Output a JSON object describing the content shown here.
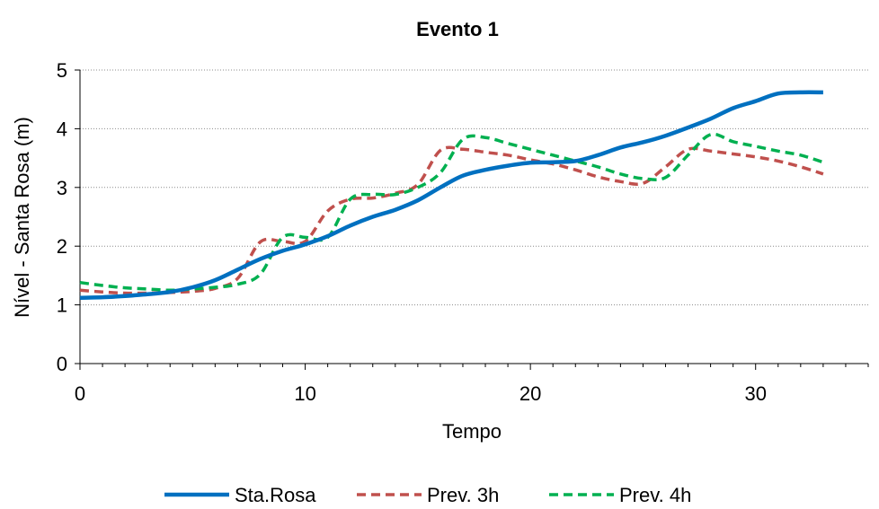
{
  "chart_data": {
    "type": "line",
    "title": "Evento 1",
    "xlabel": "Tempo",
    "ylabel": "Nível - Santa Rosa (m)",
    "xlim": [
      0,
      35
    ],
    "ylim": [
      0,
      5
    ],
    "xticks": [
      0,
      10,
      20,
      30
    ],
    "yticks": [
      0,
      1,
      2,
      3,
      4,
      5
    ],
    "grid": "horizontal-dotted",
    "legend_position": "bottom",
    "series": [
      {
        "name": "Sta.Rosa",
        "color": "#0070c0",
        "dash": "solid",
        "x": [
          0,
          1,
          2,
          3,
          4,
          5,
          6,
          7,
          8,
          9,
          10,
          11,
          12,
          13,
          14,
          15,
          16,
          17,
          18,
          19,
          20,
          21,
          22,
          23,
          24,
          25,
          26,
          27,
          28,
          29,
          30,
          31,
          32,
          33
        ],
        "y": [
          1.12,
          1.13,
          1.15,
          1.18,
          1.22,
          1.3,
          1.42,
          1.6,
          1.78,
          1.92,
          2.03,
          2.17,
          2.35,
          2.5,
          2.62,
          2.78,
          3.0,
          3.2,
          3.3,
          3.37,
          3.42,
          3.43,
          3.45,
          3.55,
          3.68,
          3.77,
          3.88,
          4.02,
          4.17,
          4.35,
          4.47,
          4.6,
          4.62,
          4.62
        ]
      },
      {
        "name": "Prev. 3h",
        "color": "#c0504d",
        "dash": "dashed",
        "x": [
          0,
          1,
          2,
          3,
          4,
          5,
          6,
          7,
          8,
          9,
          10,
          11,
          12,
          13,
          14,
          15,
          16,
          17,
          18,
          19,
          20,
          21,
          22,
          23,
          24,
          25,
          26,
          27,
          28,
          29,
          30,
          31,
          32,
          33
        ],
        "y": [
          1.25,
          1.22,
          1.2,
          1.2,
          1.21,
          1.23,
          1.28,
          1.45,
          2.07,
          2.08,
          2.08,
          2.6,
          2.8,
          2.82,
          2.9,
          3.05,
          3.63,
          3.65,
          3.6,
          3.55,
          3.47,
          3.4,
          3.3,
          3.18,
          3.1,
          3.07,
          3.35,
          3.65,
          3.62,
          3.57,
          3.52,
          3.45,
          3.35,
          3.23
        ]
      },
      {
        "name": "Prev. 4h",
        "color": "#00b050",
        "dash": "dashed",
        "x": [
          0,
          1,
          2,
          3,
          4,
          5,
          6,
          7,
          8,
          9,
          10,
          11,
          12,
          13,
          14,
          15,
          16,
          17,
          18,
          19,
          20,
          21,
          22,
          23,
          24,
          25,
          26,
          27,
          28,
          29,
          30,
          31,
          32,
          33
        ],
        "y": [
          1.38,
          1.33,
          1.29,
          1.27,
          1.25,
          1.27,
          1.3,
          1.35,
          1.52,
          2.15,
          2.15,
          2.15,
          2.8,
          2.88,
          2.88,
          3.0,
          3.25,
          3.82,
          3.85,
          3.75,
          3.65,
          3.55,
          3.45,
          3.35,
          3.23,
          3.15,
          3.17,
          3.55,
          3.9,
          3.78,
          3.7,
          3.62,
          3.55,
          3.43
        ]
      }
    ]
  }
}
